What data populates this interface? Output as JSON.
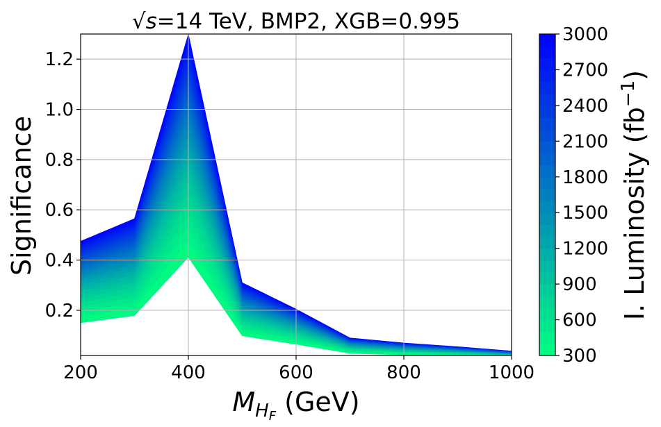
{
  "chart_data": {
    "type": "area",
    "title": "=14 TeV, BMP2, XGB=0.995",
    "title_math": "√s",
    "xlabel_math": "M",
    "xlabel_sub": "H",
    "xlabel_subsub": "F",
    "xlabel_units": " (GeV)",
    "ylabel": "Significance",
    "x": [
      200,
      300,
      400,
      500,
      600,
      700,
      800,
      900,
      1000
    ],
    "significance_at_3000": [
      0.475,
      0.565,
      1.3,
      0.31,
      0.205,
      0.09,
      0.07,
      0.055,
      0.038
    ],
    "xlim": [
      200,
      1000
    ],
    "ylim": [
      0.02,
      1.3
    ],
    "xticks": [
      "200",
      "400",
      "600",
      "800",
      "1000"
    ],
    "yticks": [
      "0.2",
      "0.4",
      "0.6",
      "0.8",
      "1.0",
      "1.2"
    ],
    "grid": true,
    "colorbar": {
      "label": "I. Luminosity (fb",
      "label_sup": "−1",
      "label_close": ")",
      "min": 300,
      "max": 3000,
      "ticks": [
        "300",
        "600",
        "900",
        "1200",
        "1500",
        "1800",
        "2100",
        "2400",
        "2700",
        "3000"
      ],
      "colormap": "winter_r",
      "color_low": "#00ff80",
      "color_high": "#0000ff"
    }
  }
}
